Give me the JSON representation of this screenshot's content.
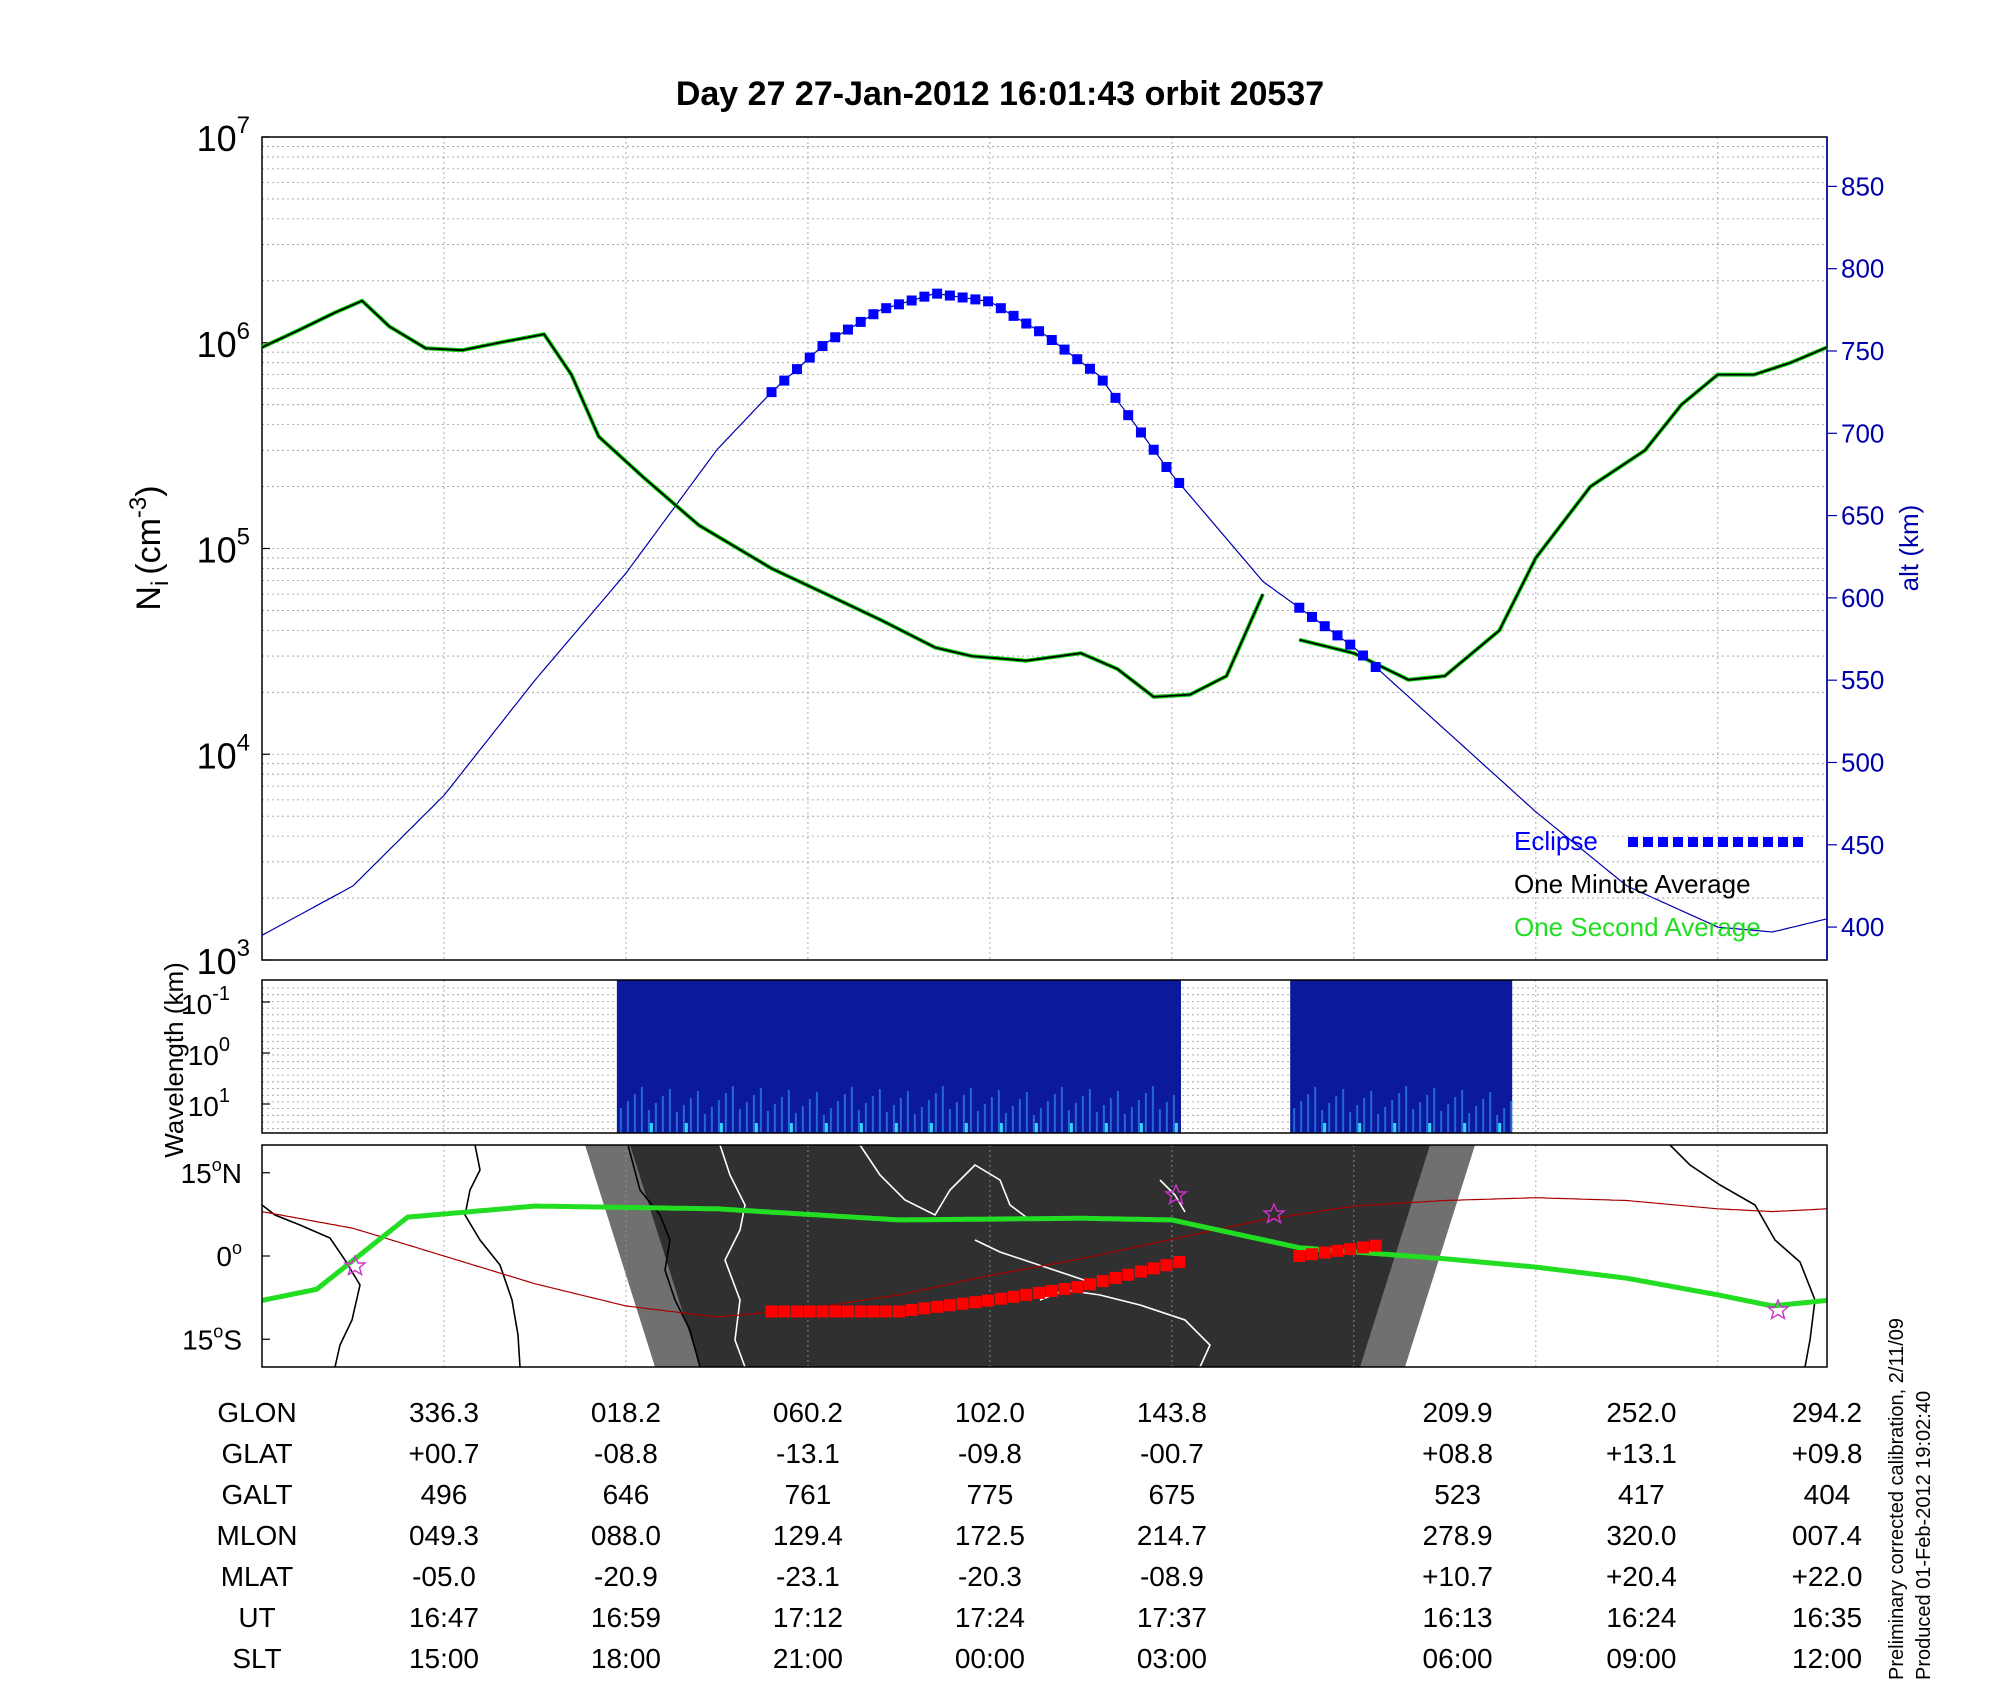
{
  "title": "Day 27  27-Jan-2012 16:01:43   orbit 20537",
  "colors": {
    "density_avg": "#000000",
    "density_1s": "#00cc00",
    "altitude": "#0000aa",
    "eclipse": "#0000ff",
    "ground_track": "#22dd22",
    "magnetic_equator": "#aa0000",
    "eclipse_track": "#ff0000",
    "night": "#303030",
    "twilight": "#707070",
    "spectrogram": "#0a1a9a"
  },
  "chart_data": [
    {
      "type": "line",
      "ylabel_main": "N",
      "ylabel_sub": "i",
      "ylabel_unit": "(cm",
      "ylabel_exp": "-3",
      "ylabel_close": ")",
      "y_scale": "log",
      "ylim": [
        1000,
        10000000
      ],
      "y_ticks": [
        {
          "base": "10",
          "exp": "3"
        },
        {
          "base": "10",
          "exp": "4"
        },
        {
          "base": "10",
          "exp": "5"
        },
        {
          "base": "10",
          "exp": "6"
        },
        {
          "base": "10",
          "exp": "7"
        }
      ],
      "y2label": "alt (km)",
      "y2lim": [
        380,
        880
      ],
      "y2_ticks": [
        "400",
        "450",
        "500",
        "550",
        "600",
        "650",
        "700",
        "750",
        "800",
        "850"
      ],
      "x_range": [
        0,
        8.6
      ],
      "grid": true,
      "legend_position": "bottom-right",
      "legend": {
        "eclipse": "Eclipse",
        "one_minute": "One Minute Average",
        "one_second": "One Second Average"
      },
      "density_segments": [
        {
          "x": [
            0,
            0.2,
            0.4,
            0.55,
            0.7,
            0.9,
            1.1,
            1.3,
            1.55,
            1.7,
            1.85,
            2.1,
            2.4,
            2.8,
            3.1,
            3.4,
            3.7,
            3.9,
            4.2,
            4.5,
            4.7,
            4.9,
            5.1,
            5.3,
            5.5
          ],
          "y": [
            950000,
            1150000,
            1400000,
            1600000,
            1200000,
            940000,
            920000,
            1000000,
            1100000,
            700000,
            350000,
            220000,
            130000,
            80000,
            60000,
            45000,
            33000,
            30000,
            28500,
            31000,
            26000,
            19000,
            19500,
            24000,
            60000
          ]
        },
        {
          "x": [
            5.7,
            6.0,
            6.3,
            6.5,
            6.8,
            7.0,
            7.3,
            7.6,
            7.8,
            8.0,
            8.2,
            8.4,
            8.6
          ],
          "y": [
            36000,
            31000,
            23000,
            24000,
            40000,
            90000,
            200000,
            300000,
            500000,
            700000,
            700000,
            800000,
            950000
          ]
        }
      ],
      "altitude_km": {
        "x": [
          0,
          0.5,
          1.0,
          1.5,
          2.0,
          2.5,
          2.8,
          3.1,
          3.4,
          3.7,
          4.0,
          4.3,
          4.6,
          5.0,
          5.5,
          6.0,
          6.5,
          7.0,
          7.5,
          8.0,
          8.3,
          8.6
        ],
        "y": [
          395,
          425,
          480,
          550,
          615,
          690,
          725,
          755,
          775,
          785,
          780,
          760,
          735,
          675,
          610,
          570,
          520,
          470,
          425,
          400,
          397,
          405
        ]
      },
      "eclipse_segments": [
        [
          2.8,
          5.05
        ],
        [
          5.7,
          6.15
        ]
      ]
    },
    {
      "type": "heatmap",
      "ylabel": "Wavelength (km)",
      "y_scale": "log",
      "y_ticks": [
        {
          "base": "10",
          "exp": "-1"
        },
        {
          "base": "10",
          "exp": "0"
        },
        {
          "base": "10",
          "exp": "1"
        }
      ],
      "data_blocks": [
        [
          1.95,
          5.05
        ],
        [
          5.65,
          6.87
        ]
      ]
    },
    {
      "type": "map",
      "y_ticks": [
        {
          "value": "15",
          "deg": "o",
          "hem": "N"
        },
        {
          "value": "0",
          "deg": "o",
          "hem": ""
        },
        {
          "value": "15",
          "deg": "o",
          "hem": "S"
        }
      ],
      "ylim": [
        -20,
        20
      ],
      "ground_track": {
        "x": [
          0,
          0.3,
          0.8,
          1.5,
          2.5,
          3.5,
          4.5,
          5.0,
          5.7,
          6.5,
          7.0,
          7.5,
          8.0,
          8.3,
          8.6
        ],
        "y": [
          -8,
          -6,
          7,
          9,
          8.5,
          6.5,
          6.8,
          6.5,
          1.5,
          -0.5,
          -2,
          -4,
          -7,
          -9,
          -8
        ]
      },
      "magnetic_equator": {
        "x": [
          0,
          0.5,
          1.0,
          1.5,
          2.0,
          2.5,
          3.0,
          3.5,
          4.0,
          4.5,
          5.0,
          5.5,
          6.0,
          6.5,
          7.0,
          7.5,
          8.0,
          8.3,
          8.6
        ],
        "y": [
          8,
          5,
          0,
          -5,
          -9,
          -11,
          -9.5,
          -7,
          -3.5,
          -0.5,
          3,
          6.5,
          9,
          10,
          10.5,
          10,
          8.5,
          8,
          8.5
        ]
      },
      "eclipse_track_segments": [
        {
          "x": [
            2.8,
            3.5,
            4.0,
            4.5,
            5.05
          ],
          "y": [
            -10,
            -10,
            -8,
            -5.5,
            -1
          ]
        },
        {
          "x": [
            5.7,
            6.15
          ],
          "y": [
            0,
            2
          ]
        }
      ]
    }
  ],
  "table": {
    "row_labels": [
      "GLON",
      "GLAT",
      "GALT",
      "MLON",
      "MLAT",
      "UT",
      "SLT"
    ],
    "columns": [
      {
        "x": 1,
        "values": [
          "336.3",
          "+00.7",
          "496",
          "049.3",
          "-05.0",
          "16:47",
          "15:00"
        ]
      },
      {
        "x": 2,
        "values": [
          "018.2",
          "-08.8",
          "646",
          "088.0",
          "-20.9",
          "16:59",
          "18:00"
        ]
      },
      {
        "x": 3,
        "values": [
          "060.2",
          "-13.1",
          "761",
          "129.4",
          "-23.1",
          "17:12",
          "21:00"
        ]
      },
      {
        "x": 4,
        "values": [
          "102.0",
          "-09.8",
          "775",
          "172.5",
          "-20.3",
          "17:24",
          "00:00"
        ]
      },
      {
        "x": 5,
        "values": [
          "143.8",
          "-00.7",
          "675",
          "214.7",
          "-08.9",
          "17:37",
          "03:00"
        ]
      },
      {
        "x": 6.57,
        "values": [
          "209.9",
          "+08.8",
          "523",
          "278.9",
          "+10.7",
          "16:13",
          "06:00"
        ]
      },
      {
        "x": 7.58,
        "values": [
          "252.0",
          "+13.1",
          "417",
          "320.0",
          "+20.4",
          "16:24",
          "09:00"
        ]
      },
      {
        "x": 8.6,
        "values": [
          "294.2",
          "+09.8",
          "404",
          "007.4",
          "+22.0",
          "16:35",
          "12:00"
        ]
      }
    ]
  },
  "footnote_line1": "Preliminary corrected calibration, 2/11/09",
  "footnote_line2": "Produced 01-Feb-2012 19:02:40"
}
